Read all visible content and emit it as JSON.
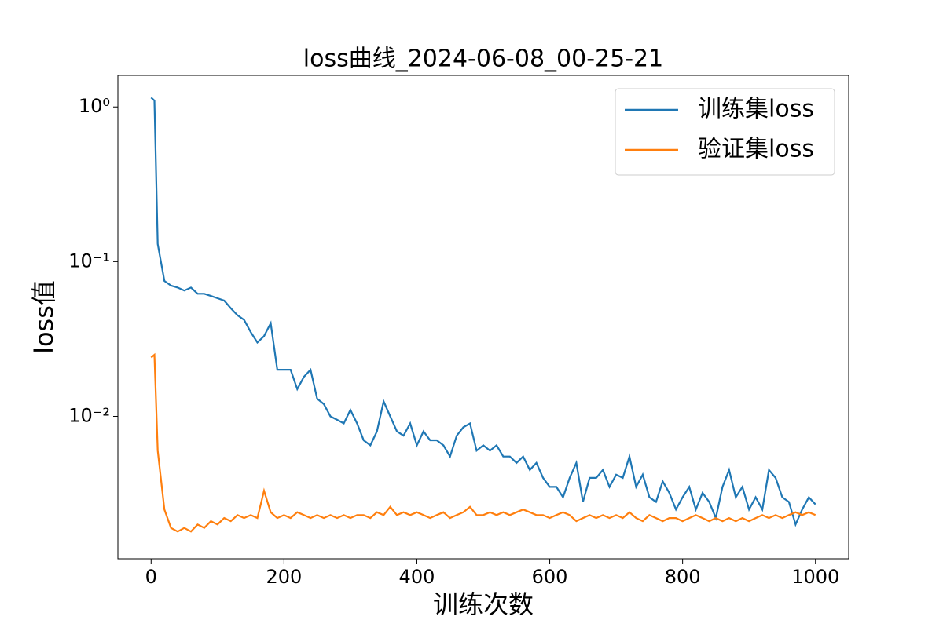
{
  "chart_data": {
    "type": "line",
    "title": "loss曲线_2024-06-08_00-25-21",
    "x_label": "训练次数",
    "y_label": "loss值",
    "y_scale": "log",
    "legend": "upper right",
    "xlim": [
      -50,
      1050
    ],
    "ylim": [
      0.0012,
      1.6
    ],
    "xticks": [
      0,
      200,
      400,
      600,
      800,
      1000
    ],
    "yticks": [
      {
        "value": 1,
        "label": "10⁰"
      },
      {
        "value": 0.1,
        "label": "10⁻¹"
      },
      {
        "value": 0.01,
        "label": "10⁻²"
      }
    ],
    "x": [
      0,
      5,
      10,
      20,
      30,
      40,
      50,
      60,
      70,
      80,
      90,
      100,
      110,
      120,
      130,
      140,
      150,
      160,
      170,
      180,
      190,
      200,
      210,
      220,
      230,
      240,
      250,
      260,
      270,
      280,
      290,
      300,
      310,
      320,
      330,
      340,
      350,
      360,
      370,
      380,
      390,
      400,
      410,
      420,
      430,
      440,
      450,
      460,
      470,
      480,
      490,
      500,
      510,
      520,
      530,
      540,
      550,
      560,
      570,
      580,
      590,
      600,
      610,
      620,
      630,
      640,
      650,
      660,
      670,
      680,
      690,
      700,
      710,
      720,
      730,
      740,
      750,
      760,
      770,
      780,
      790,
      800,
      810,
      820,
      830,
      840,
      850,
      860,
      870,
      880,
      890,
      900,
      910,
      920,
      930,
      940,
      950,
      960,
      970,
      980,
      990,
      1000
    ],
    "series": [
      {
        "name": "训练集loss",
        "color": "#1f77b4",
        "values": [
          1.15,
          1.1,
          0.13,
          0.075,
          0.07,
          0.068,
          0.065,
          0.068,
          0.062,
          0.062,
          0.06,
          0.058,
          0.056,
          0.05,
          0.045,
          0.042,
          0.035,
          0.03,
          0.033,
          0.04,
          0.02,
          0.02,
          0.02,
          0.015,
          0.018,
          0.02,
          0.013,
          0.012,
          0.01,
          0.0095,
          0.009,
          0.011,
          0.009,
          0.007,
          0.0065,
          0.008,
          0.0125,
          0.01,
          0.008,
          0.0075,
          0.009,
          0.0065,
          0.008,
          0.007,
          0.007,
          0.0065,
          0.0055,
          0.0075,
          0.0085,
          0.009,
          0.006,
          0.0065,
          0.006,
          0.0065,
          0.0055,
          0.0055,
          0.005,
          0.0055,
          0.0045,
          0.005,
          0.004,
          0.0035,
          0.0035,
          0.003,
          0.004,
          0.005,
          0.0028,
          0.004,
          0.004,
          0.0045,
          0.0035,
          0.0042,
          0.004,
          0.0055,
          0.0035,
          0.0042,
          0.003,
          0.0028,
          0.0038,
          0.0032,
          0.0025,
          0.003,
          0.0035,
          0.0025,
          0.0032,
          0.0028,
          0.0022,
          0.0035,
          0.0045,
          0.003,
          0.0035,
          0.0025,
          0.003,
          0.0025,
          0.0045,
          0.004,
          0.003,
          0.0028,
          0.002,
          0.0025,
          0.003,
          0.0027
        ]
      },
      {
        "name": "验证集loss",
        "color": "#ff7f0e",
        "values": [
          0.024,
          0.025,
          0.006,
          0.0025,
          0.0019,
          0.0018,
          0.0019,
          0.0018,
          0.002,
          0.0019,
          0.0021,
          0.002,
          0.0022,
          0.0021,
          0.0023,
          0.0022,
          0.0023,
          0.0022,
          0.0033,
          0.0024,
          0.0022,
          0.0023,
          0.0022,
          0.0024,
          0.0023,
          0.0022,
          0.0023,
          0.0022,
          0.0023,
          0.0022,
          0.0023,
          0.0022,
          0.0023,
          0.0023,
          0.0022,
          0.0024,
          0.0023,
          0.0026,
          0.0023,
          0.0024,
          0.0023,
          0.0024,
          0.0023,
          0.0022,
          0.0023,
          0.0024,
          0.0022,
          0.0023,
          0.0024,
          0.0026,
          0.0023,
          0.0023,
          0.0024,
          0.0023,
          0.0024,
          0.0023,
          0.0024,
          0.0025,
          0.0024,
          0.0023,
          0.0023,
          0.0022,
          0.0023,
          0.0024,
          0.0023,
          0.0021,
          0.0022,
          0.0023,
          0.0022,
          0.0023,
          0.0022,
          0.0023,
          0.0022,
          0.0024,
          0.0022,
          0.0021,
          0.0023,
          0.0022,
          0.0021,
          0.0022,
          0.0022,
          0.0021,
          0.0022,
          0.0023,
          0.0022,
          0.0021,
          0.0022,
          0.0021,
          0.0022,
          0.0021,
          0.0022,
          0.0021,
          0.0022,
          0.0023,
          0.0022,
          0.0023,
          0.0022,
          0.0023,
          0.0024,
          0.0023,
          0.0024,
          0.0023
        ]
      }
    ]
  }
}
